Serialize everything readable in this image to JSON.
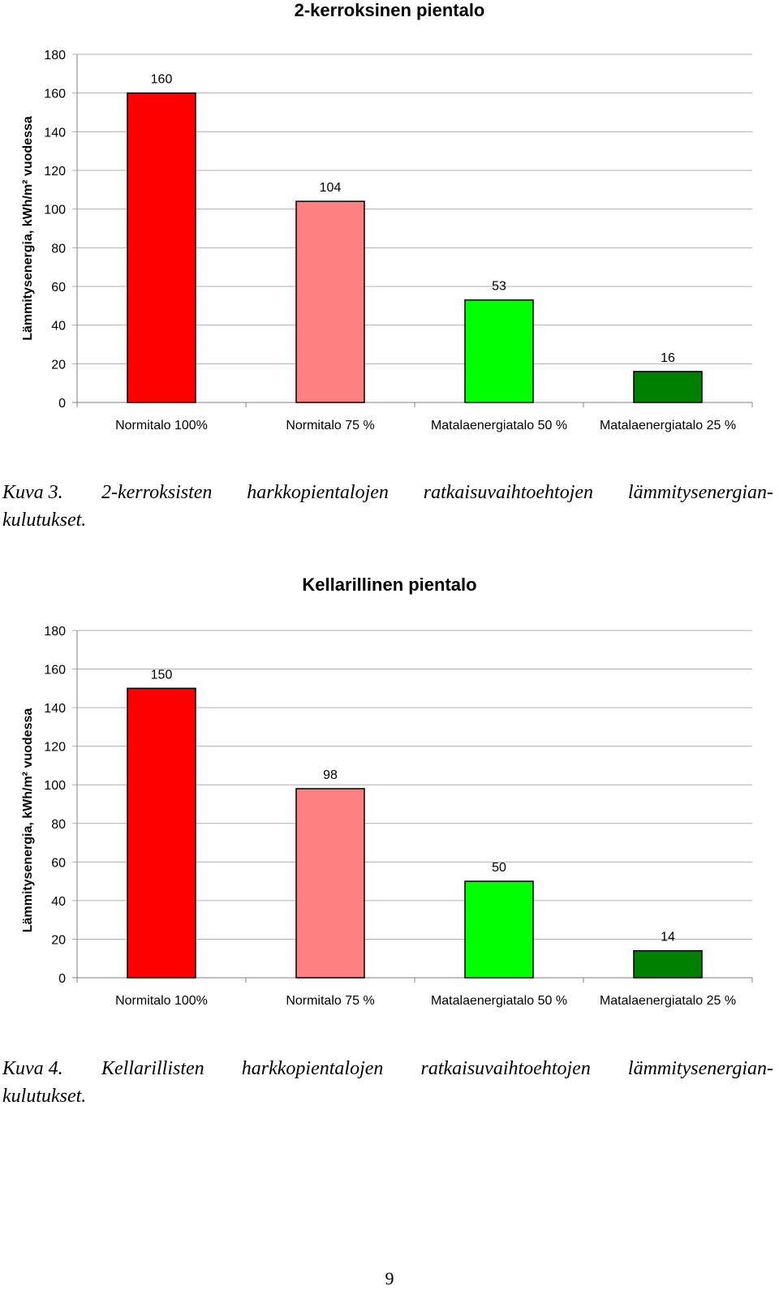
{
  "chart_data": [
    {
      "type": "bar",
      "title": "2-kerroksinen pientalo",
      "ylabel": "Lämmitysenergia, kWh/m² vuodessa",
      "xlabel": "",
      "ylim": [
        0,
        180
      ],
      "yticks": [
        0,
        20,
        40,
        60,
        80,
        100,
        120,
        140,
        160,
        180
      ],
      "categories": [
        "Normitalo 100%",
        "Normitalo 75 %",
        "Matalaenergiatalo 50 %",
        "Matalaenergiatalo 25 %"
      ],
      "values": [
        160,
        104,
        53,
        16
      ],
      "colors": [
        "#ff0000",
        "#ff8080",
        "#00ff00",
        "#008000"
      ],
      "grid": true,
      "legend": "none"
    },
    {
      "type": "bar",
      "title": "Kellarillinen pientalo",
      "ylabel": "Lämmitysenergia, kWh/m² vuodessa",
      "xlabel": "",
      "ylim": [
        0,
        180
      ],
      "yticks": [
        0,
        20,
        40,
        60,
        80,
        100,
        120,
        140,
        160,
        180
      ],
      "categories": [
        "Normitalo 100%",
        "Normitalo 75 %",
        "Matalaenergiatalo 50 %",
        "Matalaenergiatalo 25 %"
      ],
      "values": [
        150,
        98,
        50,
        14
      ],
      "colors": [
        "#ff0000",
        "#ff8080",
        "#00ff00",
        "#008000"
      ],
      "grid": true,
      "legend": "none"
    }
  ],
  "captions": [
    {
      "label": "Kuva 3.",
      "words": [
        "2-kerroksisten",
        "harkkopientalojen",
        "ratkaisuvaihtoehtojen",
        "lämmitysenergian-"
      ],
      "line2": "kulutukset."
    },
    {
      "label": "Kuva 4.",
      "words": [
        "Kellarillisten",
        "harkkopientalojen",
        "ratkaisuvaihtoehtojen",
        "lämmitysenergian-"
      ],
      "line2": "kulutukset."
    }
  ],
  "page_number": "9"
}
